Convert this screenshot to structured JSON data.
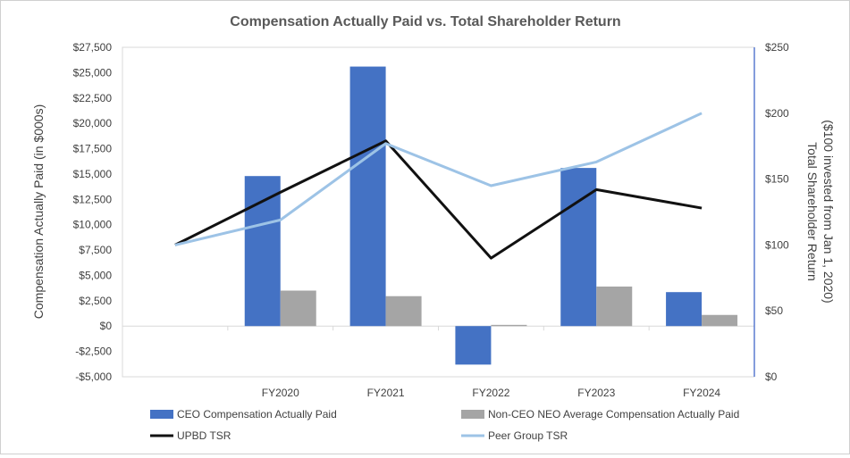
{
  "chart_data": {
    "type": "bar",
    "title": "Compensation Actually Paid vs. Total Shareholder Return",
    "categories": [
      "",
      "FY2020",
      "FY2021",
      "FY2022",
      "FY2023",
      "FY2024"
    ],
    "ylabel": "Compensation Actually Paid (in $000s)",
    "y2label_line1": "Total Shareholder Return",
    "y2label_line2": "($100 invested from Jan 1, 2020)",
    "ylim": [
      -5000,
      27500
    ],
    "y2lim": [
      0,
      250
    ],
    "yticks": [
      -5000,
      -2500,
      0,
      2500,
      5000,
      7500,
      10000,
      12500,
      15000,
      17500,
      20000,
      22500,
      25000,
      27500
    ],
    "ytick_labels": [
      "-$5,000",
      "-$2,500",
      "$0",
      "$2,500",
      "$5,000",
      "$7,500",
      "$10,000",
      "$12,500",
      "$15,000",
      "$17,500",
      "$20,000",
      "$22,500",
      "$25,000",
      "$27,500"
    ],
    "y2ticks": [
      0,
      50,
      100,
      150,
      200,
      250
    ],
    "y2tick_labels": [
      "$0",
      "$50",
      "$100",
      "$150",
      "$200",
      "$250"
    ],
    "bar_series": [
      {
        "name": "CEO Compensation Actually Paid",
        "color": "#4472C4",
        "values": [
          null,
          14800,
          25600,
          -3800,
          15600,
          3350
        ]
      },
      {
        "name": "Non-CEO NEO Average Compensation Actually Paid",
        "color": "#A5A5A5",
        "values": [
          null,
          3500,
          2950,
          120,
          3900,
          1100
        ]
      }
    ],
    "line_series": [
      {
        "name": "UPBD TSR",
        "color": "#111111",
        "values": [
          100,
          140,
          179,
          90,
          142,
          128
        ]
      },
      {
        "name": "Peer Group TSR",
        "color": "#9DC3E6",
        "values": [
          100,
          119,
          177,
          145,
          163,
          200
        ]
      }
    ]
  }
}
